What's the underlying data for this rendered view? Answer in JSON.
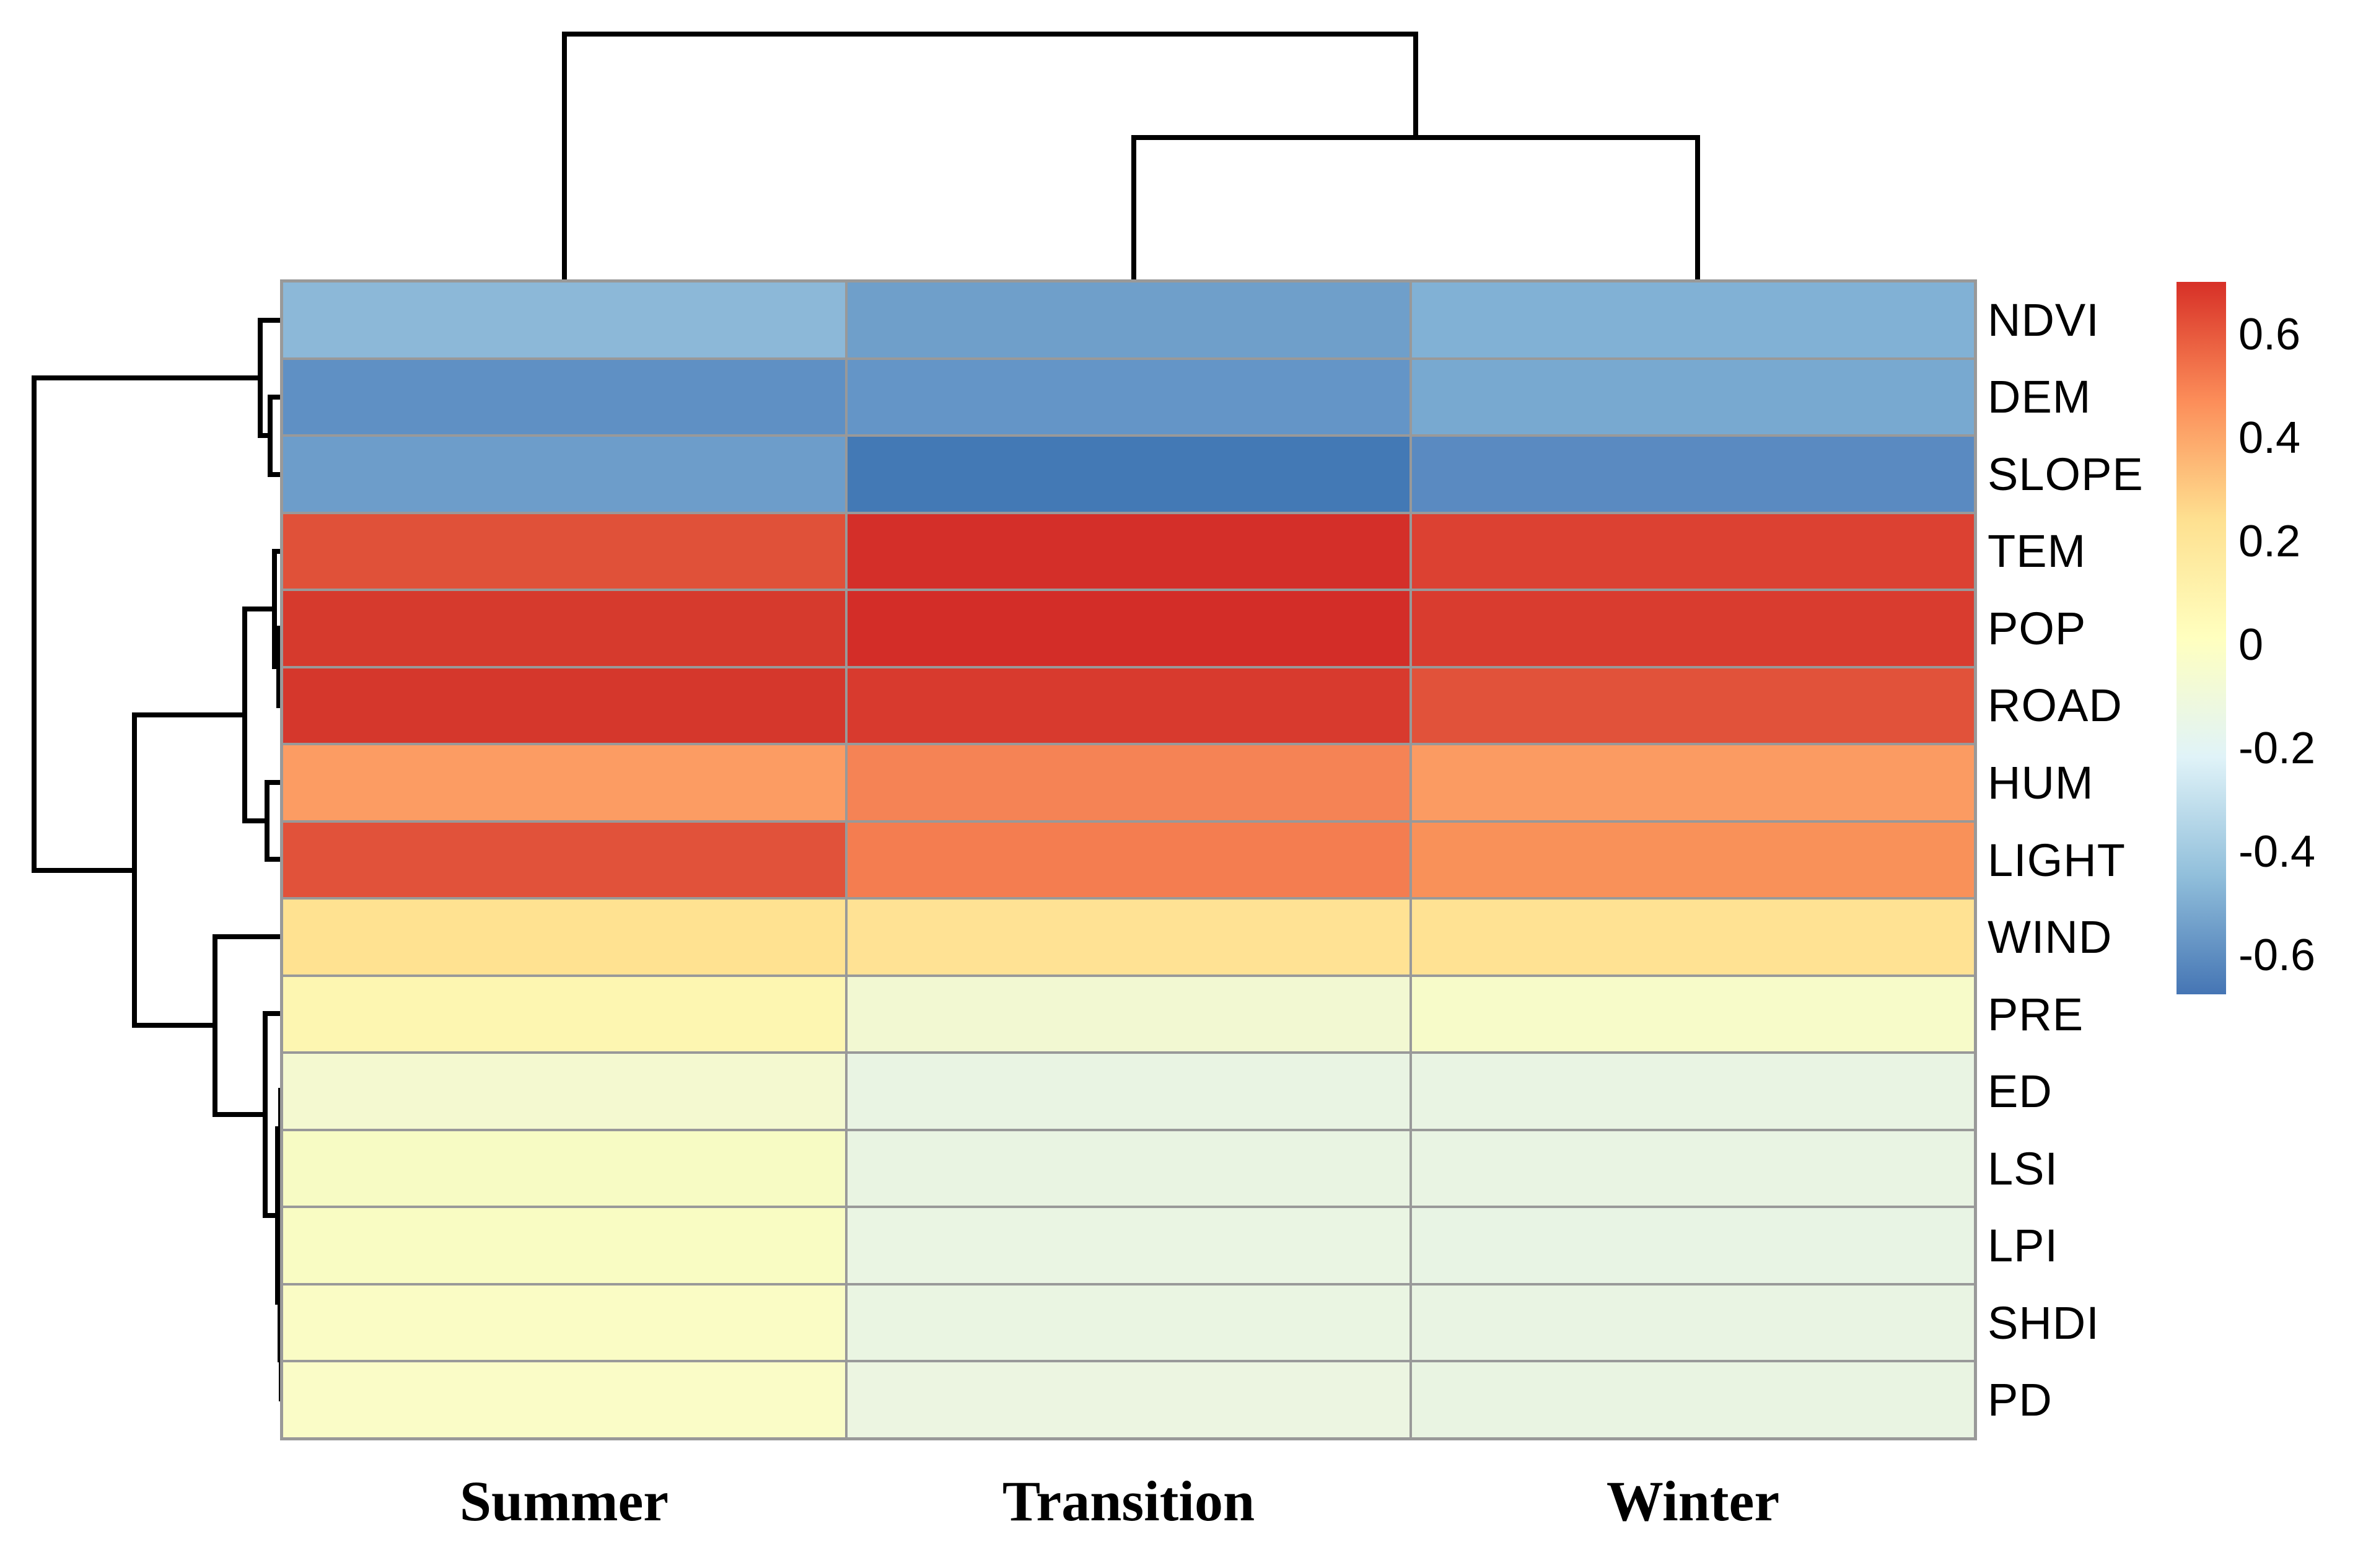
{
  "figure": {
    "description": "Clustered correlation heatmap of environmental drivers by season",
    "background_color": "#ffffff",
    "grid_line_color": "#999999",
    "dendrogram_color": "#000000"
  },
  "chart_data": {
    "type": "heatmap",
    "title": "",
    "columns": [
      "Summer",
      "Transition",
      "Winter"
    ],
    "rows": [
      "NDVI",
      "DEM",
      "SLOPE",
      "TEM",
      "POP",
      "ROAD",
      "HUM",
      "LIGHT",
      "WIND",
      "PRE",
      "ED",
      "LSI",
      "LPI",
      "SHDI",
      "PD"
    ],
    "values": [
      [
        -0.45,
        -0.52,
        -0.48
      ],
      [
        -0.59,
        -0.56,
        -0.51
      ],
      [
        -0.55,
        -0.66,
        -0.6
      ],
      [
        0.62,
        0.69,
        0.65
      ],
      [
        0.67,
        0.7,
        0.66
      ],
      [
        0.67,
        0.66,
        0.62
      ],
      [
        0.43,
        0.49,
        0.43
      ],
      [
        0.62,
        0.51,
        0.46
      ],
      [
        0.24,
        0.24,
        0.24
      ],
      [
        0.04,
        -0.02,
        0.0
      ],
      [
        -0.02,
        -0.08,
        -0.08
      ],
      [
        0.01,
        -0.08,
        -0.08
      ],
      [
        0.02,
        -0.08,
        -0.08
      ],
      [
        0.02,
        -0.08,
        -0.08
      ],
      [
        0.02,
        -0.07,
        -0.08
      ]
    ],
    "cell_colors": [
      [
        "#8cb8d8",
        "#6f9fca",
        "#81b1d5"
      ],
      [
        "#5f90c4",
        "#6495c7",
        "#78a9d0"
      ],
      [
        "#6d9dca",
        "#4379b5",
        "#5a8ac1"
      ],
      [
        "#e05139",
        "#d42f29",
        "#dc4132"
      ],
      [
        "#d63a2d",
        "#d32d28",
        "#d93c2f"
      ],
      [
        "#d5372c",
        "#d83a2e",
        "#e1523a"
      ],
      [
        "#fc9c63",
        "#f58355",
        "#fb9b62"
      ],
      [
        "#e1523a",
        "#f47d50",
        "#f99159"
      ],
      [
        "#ffe291",
        "#ffe294",
        "#ffe293"
      ],
      [
        "#fdf6b1",
        "#f2f8d2",
        "#f7fbc9"
      ],
      [
        "#f4f9d0",
        "#e9f4e3",
        "#e9f4e3"
      ],
      [
        "#f7fbc4",
        "#e9f4e2",
        "#e9f4e3"
      ],
      [
        "#f9fcc3",
        "#eaf5e3",
        "#e8f4e4"
      ],
      [
        "#fafcc5",
        "#eaf5e2",
        "#e9f4e3"
      ],
      [
        "#fafcc7",
        "#ecf5e1",
        "#e9f4e2"
      ]
    ],
    "value_scale": {
      "min": -0.67,
      "max": 0.7
    },
    "legend_position": "right",
    "colorbar": {
      "gradient_top_to_bottom": [
        "#d73027",
        "#fc8d59",
        "#fee090",
        "#ffffbf",
        "#e0f3f8",
        "#91bfdb",
        "#4575b4"
      ],
      "ticks": [
        {
          "label": "0.6"
        },
        {
          "label": "0.4"
        },
        {
          "label": "0.2"
        },
        {
          "label": "0"
        },
        {
          "label": "-0.2"
        },
        {
          "label": "-0.4"
        },
        {
          "label": "-0.6"
        }
      ]
    },
    "column_dendrogram": {
      "structure": "(Summer,(Transition,Winter))",
      "segments": [
        [
          911,
          55,
          2285,
          55
        ],
        [
          911,
          55,
          911,
          452
        ],
        [
          2285,
          55,
          2285,
          222
        ],
        [
          1830,
          222,
          2740,
          222
        ],
        [
          1830,
          222,
          1830,
          452
        ],
        [
          2740,
          222,
          2740,
          452
        ]
      ]
    },
    "row_dendrogram": {
      "structure": "((NDVI,(DEM,SLOPE)),(((TEM,(POP,ROAD)),(HUM,LIGHT)),(WIND,(PRE,((ED,LSI),(LPI,(SHDI,PD)))))))",
      "segments": [
        [
          55,
          610,
          55,
          1405
        ],
        [
          55,
          610,
          420,
          610
        ],
        [
          420,
          517,
          420,
          703
        ],
        [
          420,
          517,
          457,
          517
        ],
        [
          420,
          703,
          436,
          703
        ],
        [
          436,
          641,
          436,
          766
        ],
        [
          436,
          641,
          457,
          641
        ],
        [
          436,
          766,
          457,
          766
        ],
        [
          55,
          1405,
          217,
          1405
        ],
        [
          217,
          1154,
          217,
          1655
        ],
        [
          217,
          1154,
          395,
          1154
        ],
        [
          395,
          983,
          395,
          1325
        ],
        [
          395,
          983,
          443,
          983
        ],
        [
          443,
          890,
          443,
          1076
        ],
        [
          443,
          890,
          457,
          890
        ],
        [
          443,
          1076,
          450,
          1076
        ],
        [
          450,
          1014,
          450,
          1139
        ],
        [
          450,
          1014,
          457,
          1014
        ],
        [
          450,
          1139,
          457,
          1139
        ],
        [
          395,
          1325,
          431,
          1325
        ],
        [
          431,
          1263,
          431,
          1387
        ],
        [
          431,
          1263,
          457,
          1263
        ],
        [
          431,
          1387,
          457,
          1387
        ],
        [
          217,
          1655,
          347,
          1655
        ],
        [
          347,
          1512,
          347,
          1799
        ],
        [
          347,
          1512,
          457,
          1512
        ],
        [
          347,
          1799,
          428,
          1799
        ],
        [
          428,
          1636,
          428,
          1962
        ],
        [
          428,
          1636,
          457,
          1636
        ],
        [
          428,
          1962,
          448,
          1962
        ],
        [
          448,
          1822,
          448,
          2102
        ],
        [
          448,
          1822,
          453,
          1822
        ],
        [
          453,
          1760,
          453,
          1885
        ],
        [
          453,
          1760,
          457,
          1760
        ],
        [
          453,
          1885,
          457,
          1885
        ],
        [
          448,
          2102,
          452,
          2102
        ],
        [
          452,
          2009,
          452,
          2195
        ],
        [
          452,
          2009,
          457,
          2009
        ],
        [
          452,
          2195,
          454,
          2195
        ],
        [
          454,
          2133,
          454,
          2258
        ],
        [
          454,
          2133,
          457,
          2133
        ],
        [
          454,
          2258,
          457,
          2258
        ]
      ]
    }
  }
}
